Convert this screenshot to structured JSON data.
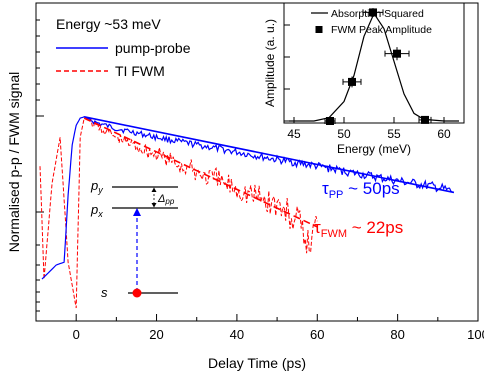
{
  "chart_data": [
    {
      "type": "line",
      "title": "",
      "xlabel": "Delay Time (ps)",
      "ylabel": "Normalised p-p / FWM signal",
      "xlim": [
        -10,
        100
      ],
      "x_ticks": [
        0,
        20,
        40,
        60,
        80,
        100
      ],
      "x_tick_labels": [
        "0",
        "20",
        "40",
        "60",
        "80",
        "100"
      ],
      "y_scale": "log",
      "y_tick_labels_shown": false,
      "grid": false,
      "legend_position": "top-left",
      "legend_header": "Energy ~53 meV",
      "series": [
        {
          "name": "pump-probe",
          "color": "#0000ff",
          "style": "solid",
          "points": [
            [
              -8.5,
              0.02
            ],
            [
              -5,
              0.028
            ],
            [
              -3,
              0.03
            ],
            [
              -2,
              0.15
            ],
            [
              -1,
              0.5
            ],
            [
              0,
              0.8
            ],
            [
              1,
              0.95
            ],
            [
              2,
              0.98
            ],
            [
              5,
              0.85
            ],
            [
              10,
              0.74
            ],
            [
              20,
              0.6
            ],
            [
              30,
              0.5
            ],
            [
              40,
              0.42
            ],
            [
              50,
              0.35
            ],
            [
              60,
              0.3
            ],
            [
              70,
              0.25
            ],
            [
              80,
              0.21
            ],
            [
              90,
              0.18
            ],
            [
              94,
              0.16
            ]
          ]
        },
        {
          "name": "TI FWM",
          "color": "#ff0000",
          "style": "dashed",
          "points": [
            [
              -9,
              0.3
            ],
            [
              -8,
              0.02
            ],
            [
              -6,
              0.2
            ],
            [
              -4,
              0.6
            ],
            [
              -2,
              0.03
            ],
            [
              0,
              0.01
            ],
            [
              1,
              0.6
            ],
            [
              2,
              0.95
            ],
            [
              5,
              0.8
            ],
            [
              10,
              0.6
            ],
            [
              20,
              0.4
            ],
            [
              30,
              0.26
            ],
            [
              40,
              0.18
            ],
            [
              50,
              0.12
            ],
            [
              55,
              0.08
            ],
            [
              58,
              0.045
            ],
            [
              60,
              0.08
            ]
          ]
        }
      ],
      "fits": [
        {
          "name": "pp-fit",
          "color": "#0000ff",
          "tau_ps": 50,
          "points": [
            [
              2,
              0.98
            ],
            [
              94,
              0.16
            ]
          ]
        },
        {
          "name": "fwm-fit",
          "color": "#ff0000",
          "tau_ps": 22,
          "points": [
            [
              2,
              0.95
            ],
            [
              60,
              0.07
            ]
          ]
        }
      ],
      "annotations": {
        "tau_pp_sym": "τ",
        "tau_pp_sub": "PP",
        "tau_pp_val": " ~ 50ps",
        "tau_fwm_sym": "τ",
        "tau_fwm_sub": "FWM",
        "tau_fwm_val": " ~ 22ps"
      },
      "level_diagram": {
        "levels": [
          "p",
          "p",
          "s"
        ],
        "level_subs": [
          "y",
          "x",
          ""
        ],
        "delta_sym": "Δ",
        "delta_sub": "pp",
        "arrow_color": "#0000ff",
        "ground_dot_color": "#ff0000"
      }
    },
    {
      "type": "scatter",
      "title": "",
      "xlabel": "Energy (meV)",
      "ylabel": "Amplitude (a. u.)",
      "xlim": [
        44,
        62
      ],
      "ylim": [
        0,
        1.05
      ],
      "x_ticks": [
        45,
        50,
        55,
        60
      ],
      "x_tick_labels": [
        "45",
        "50",
        "55",
        "60"
      ],
      "y_tick_labels_shown": false,
      "legend_position": "top",
      "series": [
        {
          "name": "Absorption Squared",
          "color": "#000000",
          "style": "line",
          "points": [
            [
              44.5,
              0
            ],
            [
              47,
              0.0
            ],
            [
              48.5,
              0.03
            ],
            [
              50,
              0.18
            ],
            [
              51,
              0.42
            ],
            [
              52,
              0.78
            ],
            [
              53,
              0.99
            ],
            [
              54,
              0.85
            ],
            [
              55,
              0.55
            ],
            [
              56,
              0.25
            ],
            [
              57,
              0.07
            ],
            [
              58,
              0.015
            ],
            [
              60,
              0
            ],
            [
              61.5,
              0
            ]
          ]
        },
        {
          "name": "FWM Peak Amplitude",
          "color": "#000000",
          "style": "markers",
          "points": [
            [
              48.6,
              0.0
            ],
            [
              50.8,
              0.36
            ],
            [
              52.9,
              1.0
            ],
            [
              55.3,
              0.62
            ],
            [
              58.1,
              0.01
            ]
          ],
          "x_err": [
            0.5,
            0.9,
            1.0,
            1.2,
            0.6
          ],
          "y_err": [
            0,
            0.05,
            0.04,
            0.06,
            0
          ]
        }
      ]
    }
  ]
}
